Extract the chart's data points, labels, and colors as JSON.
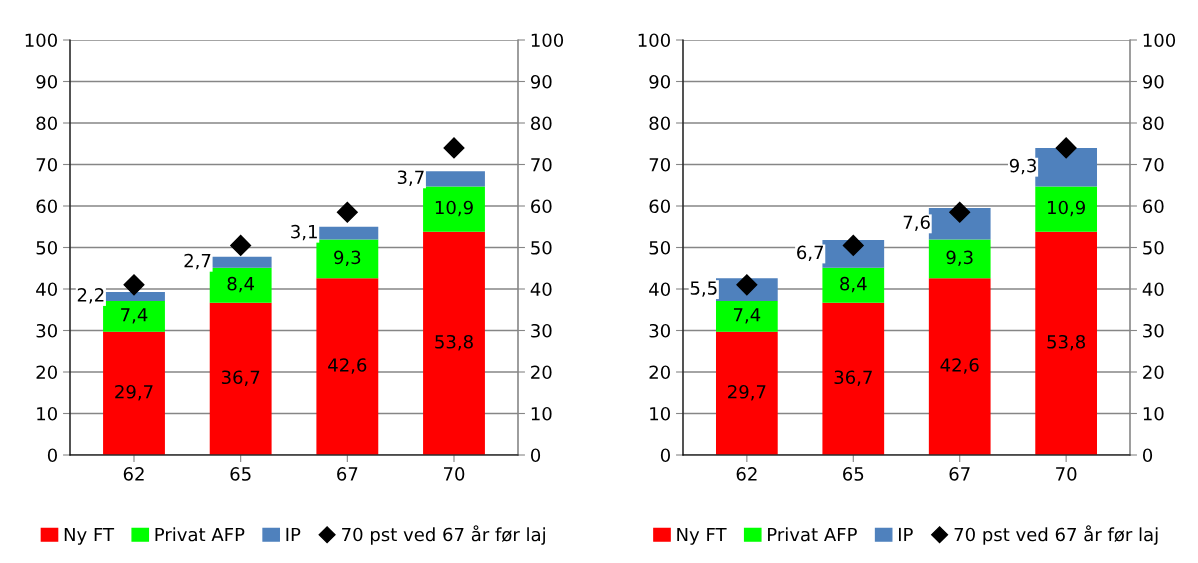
{
  "chart_data": [
    {
      "type": "bar",
      "stacked": true,
      "categories": [
        "62",
        "65",
        "67",
        "70"
      ],
      "ylim": [
        0,
        100
      ],
      "yticks": [
        0,
        10,
        20,
        30,
        40,
        50,
        60,
        70,
        80,
        90,
        100
      ],
      "y2lim": [
        0,
        100
      ],
      "y2ticks": [
        0,
        10,
        20,
        30,
        40,
        50,
        60,
        70,
        80,
        90,
        100
      ],
      "grid": "y",
      "legend": "bottom",
      "series": [
        {
          "name": "Ny FT",
          "color": "#ff0000",
          "values": [
            29.7,
            36.7,
            42.6,
            53.8
          ],
          "value_labels": [
            "29,7",
            "36,7",
            "42,6",
            "53,8"
          ]
        },
        {
          "name": "Privat AFP",
          "color": "#00ff00",
          "values": [
            7.4,
            8.4,
            9.3,
            10.9
          ],
          "value_labels": [
            "7,4",
            "8,4",
            "9,3",
            "10,9"
          ]
        },
        {
          "name": "IP",
          "color": "#4f81bd",
          "values": [
            2.2,
            2.7,
            3.1,
            3.7
          ],
          "value_labels": [
            "2,2",
            "2,7",
            "3,1",
            "3,7"
          ]
        },
        {
          "name": "70 pst ved 67 år før laj",
          "type": "scatter",
          "marker": "diamond",
          "color": "#000000",
          "x": [
            "62",
            "65",
            "67",
            "70"
          ],
          "values": [
            41,
            50.5,
            58.5,
            74
          ]
        }
      ]
    },
    {
      "type": "bar",
      "stacked": true,
      "categories": [
        "62",
        "65",
        "67",
        "70"
      ],
      "ylim": [
        0,
        100
      ],
      "yticks": [
        0,
        10,
        20,
        30,
        40,
        50,
        60,
        70,
        80,
        90,
        100
      ],
      "y2lim": [
        0,
        100
      ],
      "y2ticks": [
        0,
        10,
        20,
        30,
        40,
        50,
        60,
        70,
        80,
        90,
        100
      ],
      "grid": "y",
      "legend": "bottom",
      "series": [
        {
          "name": "Ny FT",
          "color": "#ff0000",
          "values": [
            29.7,
            36.7,
            42.6,
            53.8
          ],
          "value_labels": [
            "29,7",
            "36,7",
            "42,6",
            "53,8"
          ]
        },
        {
          "name": "Privat AFP",
          "color": "#00ff00",
          "values": [
            7.4,
            8.4,
            9.3,
            10.9
          ],
          "value_labels": [
            "7,4",
            "8,4",
            "9,3",
            "10,9"
          ]
        },
        {
          "name": "IP",
          "color": "#4f81bd",
          "values": [
            5.5,
            6.7,
            7.6,
            9.3
          ],
          "value_labels": [
            "5,5",
            "6,7",
            "7,6",
            "9,3"
          ]
        },
        {
          "name": "70 pst ved 67 år før laj",
          "type": "scatter",
          "marker": "diamond",
          "color": "#000000",
          "x": [
            "62",
            "65",
            "67",
            "70"
          ],
          "values": [
            41,
            50.5,
            58.5,
            74
          ]
        }
      ]
    }
  ]
}
